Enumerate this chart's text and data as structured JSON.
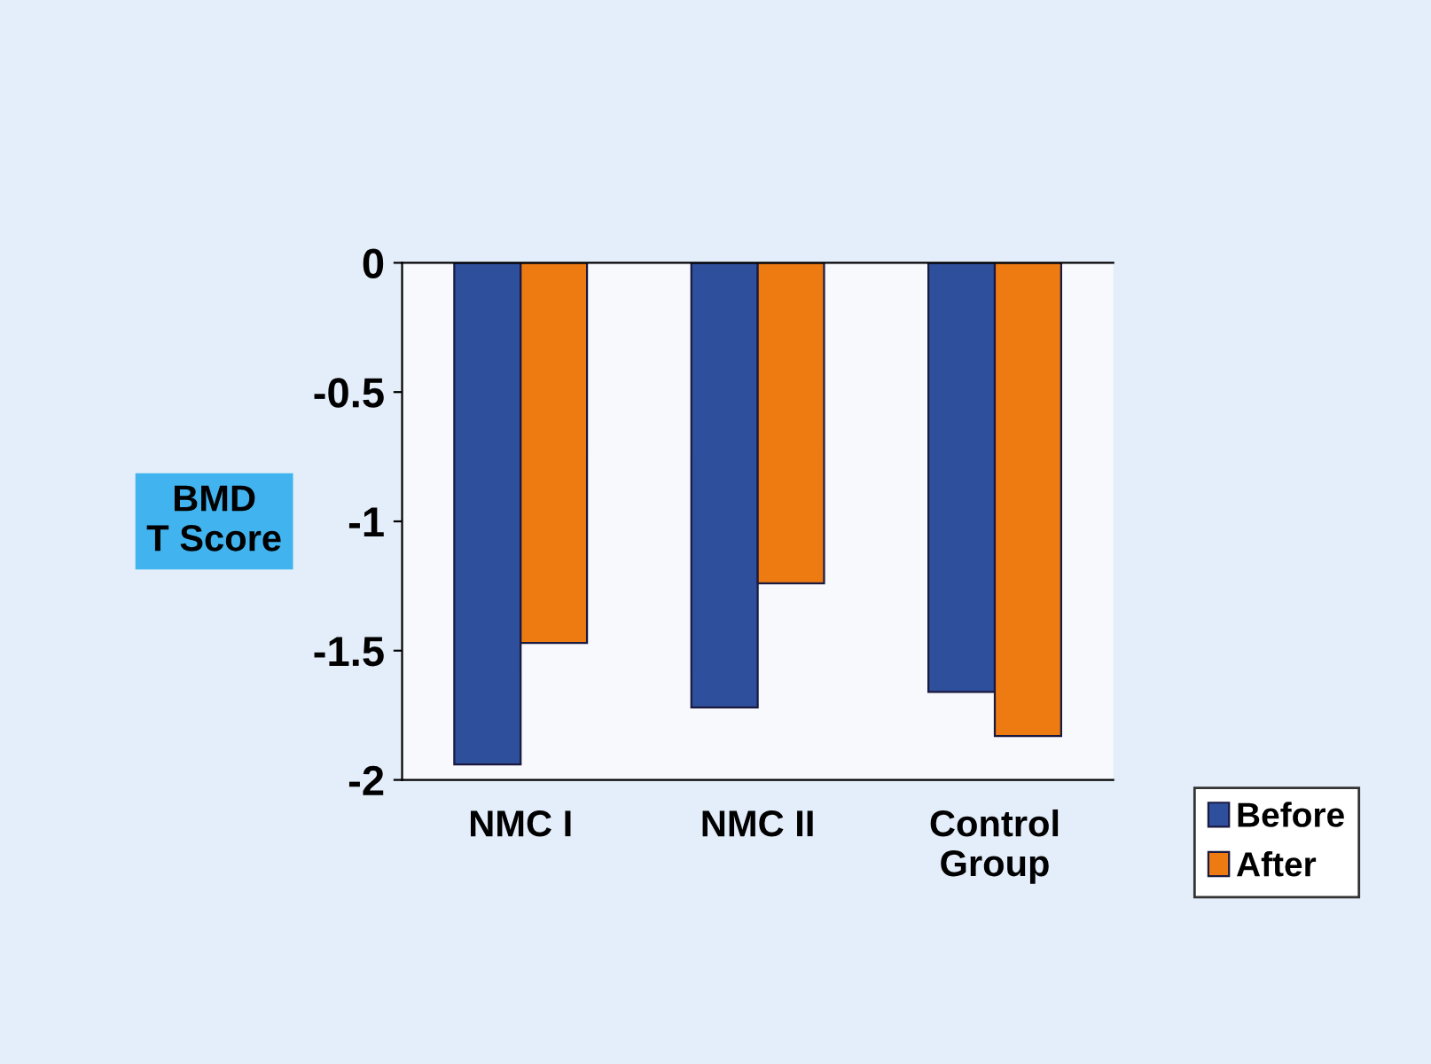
{
  "chart_data": {
    "type": "bar",
    "ylabel": "BMD\nT Score",
    "categories": [
      "NMC I",
      "NMC II",
      "Control\nGroup"
    ],
    "series": [
      {
        "name": "Before",
        "color": "#2e4f9c",
        "values": [
          -1.94,
          -1.72,
          -1.66
        ]
      },
      {
        "name": "After",
        "color": "#ee7a12",
        "values": [
          -1.47,
          -1.24,
          -1.83
        ]
      }
    ],
    "ylim": [
      -2,
      0
    ],
    "yticks": [
      0,
      -0.5,
      -1,
      -1.5,
      -2
    ],
    "grid": false,
    "legend": "bottom right"
  }
}
